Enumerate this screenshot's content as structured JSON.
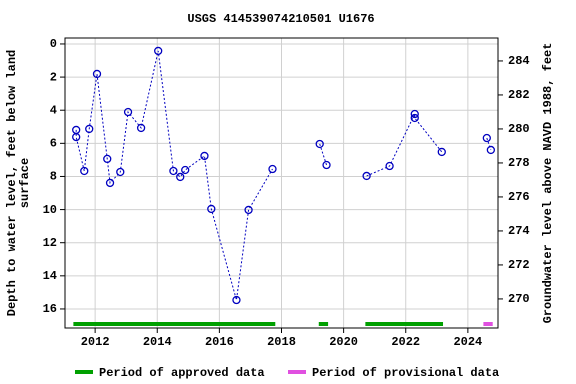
{
  "chart_data": {
    "type": "line",
    "title": "USGS 414539074210501 U1676",
    "ylabel": [
      "Depth to water level, feet below land",
      "surface"
    ],
    "y2label": "Groundwater level above NAVD 1988, feet",
    "x": [
      2011.39,
      2011.39,
      2011.65,
      2011.81,
      2012.06,
      2012.39,
      2012.48,
      2012.81,
      2013.06,
      2013.48,
      2014.03,
      2014.52,
      2014.74,
      2014.9,
      2015.52,
      2015.74,
      2016.55,
      2016.94,
      2017.71,
      null,
      2019.23,
      2019.45,
      null,
      2020.74,
      2021.48,
      2022.29,
      2022.29,
      2023.16,
      null,
      2024.61,
      2024.74
    ],
    "series": [
      {
        "name": "Depth to water level",
        "color": "#0000c0",
        "values": [
          5.19,
          5.62,
          7.67,
          5.13,
          1.81,
          6.94,
          8.39,
          7.73,
          4.11,
          5.07,
          0.42,
          7.67,
          8.03,
          7.61,
          6.76,
          9.96,
          15.46,
          10.02,
          7.55,
          null,
          6.04,
          7.31,
          null,
          7.97,
          7.37,
          4.23,
          4.47,
          6.52,
          null,
          5.68,
          6.4
        ]
      }
    ],
    "xlim": [
      2011.03,
      2024.97
    ],
    "xticks": [
      2012,
      2014,
      2016,
      2018,
      2020,
      2022,
      2024
    ],
    "ylim": [
      -0.36,
      17.15
    ],
    "y_inverted": true,
    "yticks": [
      0,
      2,
      4,
      6,
      8,
      10,
      12,
      14,
      16
    ],
    "y2lim": [
      268.29,
      285.35
    ],
    "y2ticks": [
      270,
      272,
      274,
      276,
      278,
      280,
      282,
      284
    ],
    "grid": true,
    "periods": [
      {
        "name": "Period of approved data",
        "color": "#00a000",
        "ranges": [
          [
            2011.3,
            2017.8
          ],
          [
            2019.2,
            2019.5
          ],
          [
            2020.7,
            2023.2
          ]
        ]
      },
      {
        "name": "Period of provisional data",
        "color": "#e050e0",
        "ranges": [
          [
            2024.5,
            2024.8
          ]
        ]
      }
    ]
  }
}
